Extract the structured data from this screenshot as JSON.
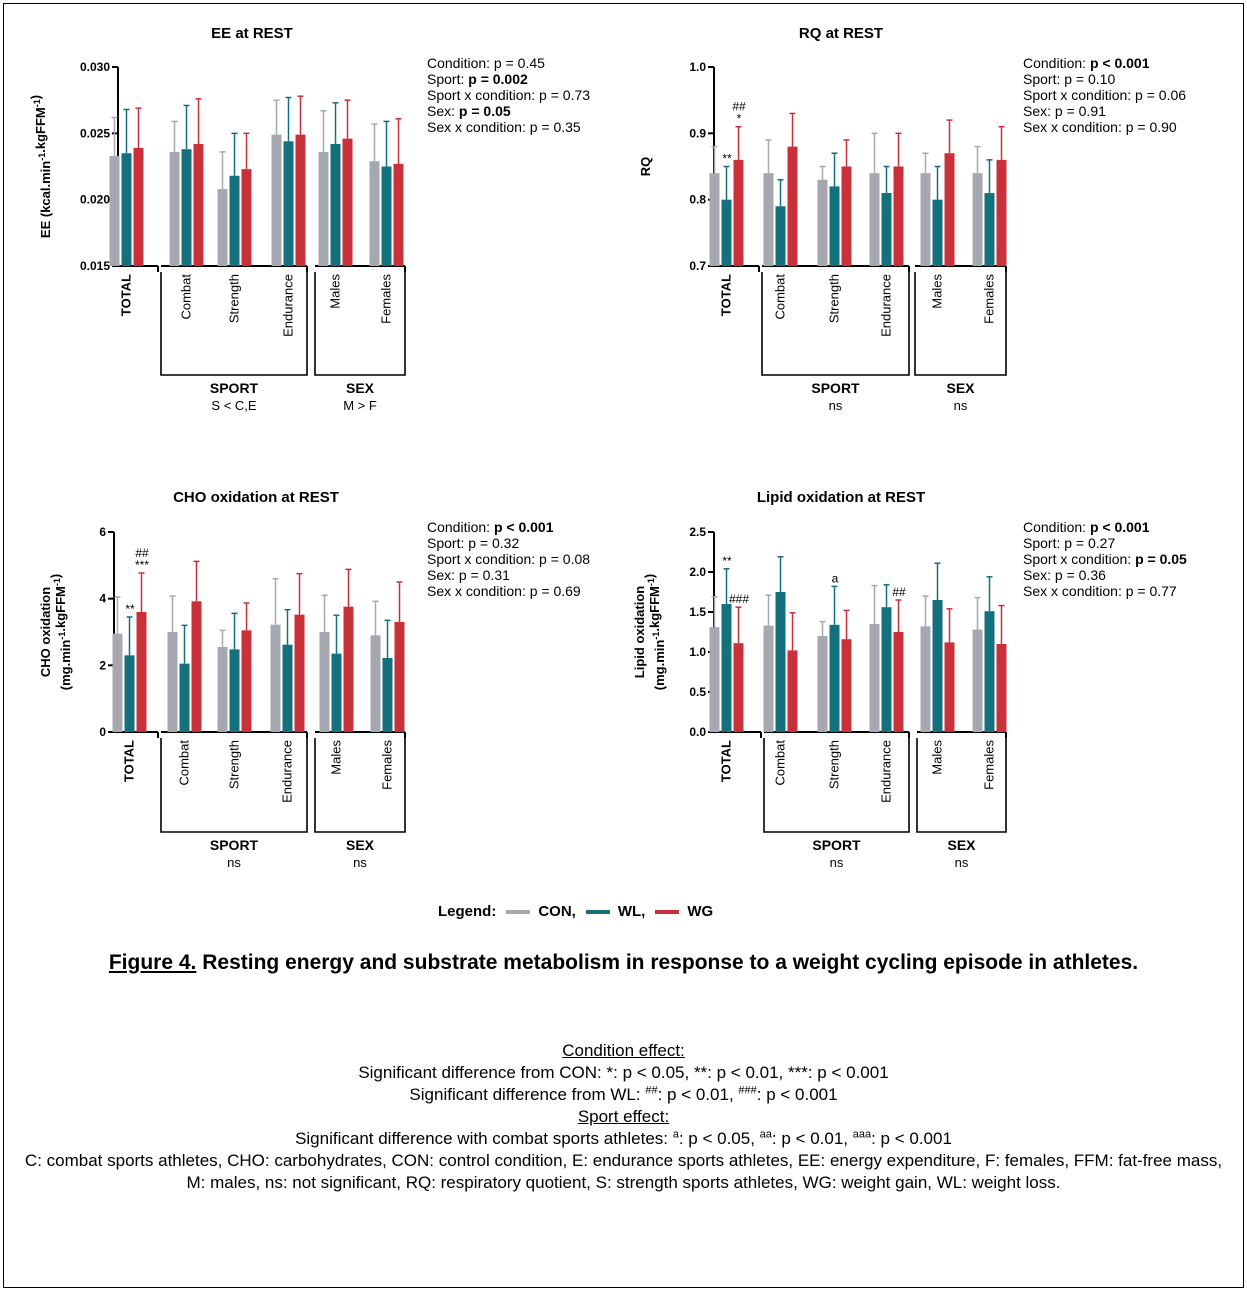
{
  "chart_data": [
    {
      "type": "bar",
      "title": "EE at REST",
      "ylabel": "EE (kcal.min-1.kgFFM-1)",
      "ylim": [
        0.015,
        0.03
      ],
      "yticks": [
        "0.015",
        "0.020",
        "0.025",
        "0.030"
      ],
      "categories": [
        "TOTAL",
        "Combat",
        "Strength",
        "Endurance",
        "Males",
        "Females"
      ],
      "series": [
        {
          "name": "CON",
          "values": [
            0.0233,
            0.0236,
            0.0208,
            0.0249,
            0.0236,
            0.0229
          ],
          "err": [
            0.0029,
            0.0023,
            0.0028,
            0.0026,
            0.0031,
            0.0028
          ]
        },
        {
          "name": "WL",
          "values": [
            0.0235,
            0.0238,
            0.0218,
            0.0244,
            0.0242,
            0.0225
          ],
          "err": [
            0.0033,
            0.0033,
            0.0032,
            0.0033,
            0.0031,
            0.0034
          ]
        },
        {
          "name": "WG",
          "values": [
            0.0239,
            0.0242,
            0.0223,
            0.0249,
            0.0246,
            0.0227
          ],
          "err": [
            0.003,
            0.0034,
            0.0027,
            0.0029,
            0.0029,
            0.0034
          ]
        }
      ],
      "annotations": [],
      "groups": [
        {
          "label": "SPORT",
          "note": "S < C,E"
        },
        {
          "label": "SEX",
          "note": "M > F"
        }
      ],
      "stats": [
        {
          "text": "Condition: p = 0.45",
          "bold": ""
        },
        {
          "text": "Sport: ",
          "bold": "p = 0.002"
        },
        {
          "text": "Sport x condition: p = 0.73",
          "bold": ""
        },
        {
          "text": "Sex: ",
          "bold": "p = 0.05"
        },
        {
          "text": "Sex x condition: p = 0.35",
          "bold": ""
        }
      ]
    },
    {
      "type": "bar",
      "title": "RQ at REST",
      "ylabel": "RQ",
      "ylim": [
        0.7,
        1.0
      ],
      "yticks": [
        "0.7",
        "0.8",
        "0.9",
        "1.0"
      ],
      "categories": [
        "TOTAL",
        "Combat",
        "Strength",
        "Endurance",
        "Males",
        "Females"
      ],
      "series": [
        {
          "name": "CON",
          "values": [
            0.84,
            0.84,
            0.83,
            0.84,
            0.84,
            0.84
          ],
          "err": [
            0.04,
            0.05,
            0.02,
            0.06,
            0.03,
            0.04
          ]
        },
        {
          "name": "WL",
          "values": [
            0.8,
            0.79,
            0.82,
            0.81,
            0.8,
            0.81
          ],
          "err": [
            0.05,
            0.04,
            0.05,
            0.04,
            0.05,
            0.05
          ]
        },
        {
          "name": "WG",
          "values": [
            0.86,
            0.88,
            0.85,
            0.85,
            0.87,
            0.86
          ],
          "err": [
            0.05,
            0.05,
            0.04,
            0.05,
            0.05,
            0.05
          ]
        }
      ],
      "annotations": [
        {
          "cat": 0,
          "bar": 1,
          "lines": [
            "**"
          ]
        },
        {
          "cat": 0,
          "bar": 2,
          "lines": [
            "##",
            "*"
          ]
        }
      ],
      "groups": [
        {
          "label": "SPORT",
          "note": "ns"
        },
        {
          "label": "SEX",
          "note": "ns"
        }
      ],
      "stats": [
        {
          "text": "Condition: ",
          "bold": "p < 0.001"
        },
        {
          "text": "Sport: p = 0.10",
          "bold": ""
        },
        {
          "text": "Sport x condition: p = 0.06",
          "bold": ""
        },
        {
          "text": "Sex: p = 0.91",
          "bold": ""
        },
        {
          "text": "Sex x condition: p = 0.90",
          "bold": ""
        }
      ]
    },
    {
      "type": "bar",
      "title": "CHO oxidation at REST",
      "ylabel": "CHO oxidation",
      "ylabel2": "(mg.min-1.kgFFM-1)",
      "ylim": [
        0,
        6
      ],
      "yticks": [
        "0",
        "2",
        "4",
        "6"
      ],
      "categories": [
        "TOTAL",
        "Combat",
        "Strength",
        "Endurance",
        "Males",
        "Females"
      ],
      "series": [
        {
          "name": "CON",
          "values": [
            2.95,
            3.0,
            2.55,
            3.22,
            3.0,
            2.9
          ],
          "err": [
            1.1,
            1.08,
            0.5,
            1.38,
            1.1,
            1.02
          ]
        },
        {
          "name": "WL",
          "values": [
            2.3,
            2.05,
            2.48,
            2.62,
            2.35,
            2.22
          ],
          "err": [
            1.15,
            1.15,
            1.08,
            1.05,
            1.15,
            1.13
          ]
        },
        {
          "name": "WG",
          "values": [
            3.6,
            3.92,
            3.05,
            3.52,
            3.76,
            3.3
          ],
          "err": [
            1.17,
            1.2,
            0.82,
            1.23,
            1.12,
            1.2
          ]
        }
      ],
      "annotations": [
        {
          "cat": 0,
          "bar": 1,
          "lines": [
            "**"
          ]
        },
        {
          "cat": 0,
          "bar": 2,
          "lines": [
            "##",
            "***"
          ]
        }
      ],
      "groups": [
        {
          "label": "SPORT",
          "note": "ns"
        },
        {
          "label": "SEX",
          "note": "ns"
        }
      ],
      "stats": [
        {
          "text": "Condition: ",
          "bold": "p < 0.001"
        },
        {
          "text": "Sport: p = 0.32",
          "bold": ""
        },
        {
          "text": "Sport x condition: p = 0.08",
          "bold": ""
        },
        {
          "text": "Sex: p = 0.31",
          "bold": ""
        },
        {
          "text": "Sex x condition: p = 0.69",
          "bold": ""
        }
      ]
    },
    {
      "type": "bar",
      "title": "Lipid oxidation at REST",
      "ylabel": "Lipid oxidation",
      "ylabel2": "(mg.min-1.kgFFM-1)",
      "ylim": [
        0,
        2.5
      ],
      "yticks": [
        "0.0",
        "0.5",
        "1.0",
        "1.5",
        "2.0",
        "2.5"
      ],
      "categories": [
        "TOTAL",
        "Combat",
        "Strength",
        "Endurance",
        "Males",
        "Females"
      ],
      "series": [
        {
          "name": "CON",
          "values": [
            1.31,
            1.33,
            1.2,
            1.35,
            1.32,
            1.28
          ],
          "err": [
            0.38,
            0.38,
            0.18,
            0.48,
            0.38,
            0.4
          ]
        },
        {
          "name": "WL",
          "values": [
            1.6,
            1.75,
            1.34,
            1.56,
            1.65,
            1.51
          ],
          "err": [
            0.44,
            0.44,
            0.48,
            0.28,
            0.46,
            0.43
          ]
        },
        {
          "name": "WG",
          "values": [
            1.11,
            1.02,
            1.16,
            1.25,
            1.12,
            1.1
          ],
          "err": [
            0.45,
            0.47,
            0.36,
            0.4,
            0.42,
            0.48
          ]
        }
      ],
      "annotations": [
        {
          "cat": 0,
          "bar": 1,
          "lines": [
            "**"
          ]
        },
        {
          "cat": 0,
          "bar": 2,
          "lines": [
            "###"
          ]
        },
        {
          "cat": 2,
          "bar": 1,
          "lines": [
            "a"
          ]
        },
        {
          "cat": 3,
          "bar": 2,
          "lines": [
            "##"
          ]
        }
      ],
      "groups": [
        {
          "label": "SPORT",
          "note": "ns"
        },
        {
          "label": "SEX",
          "note": "ns"
        }
      ],
      "stats": [
        {
          "text": "Condition: ",
          "bold": "p < 0.001"
        },
        {
          "text": "Sport: p = 0.27",
          "bold": ""
        },
        {
          "text": "Sport x condition: ",
          "bold": "p = 0.05"
        },
        {
          "text": "Sex: p = 0.36",
          "bold": ""
        },
        {
          "text": "Sex x condition: p = 0.77",
          "bold": ""
        }
      ]
    }
  ],
  "colors": {
    "CON": "#a5a8b0",
    "WL": "#14707c",
    "WG": "#c8303a"
  },
  "legend": {
    "label": "Legend:",
    "items": [
      "CON,",
      "WL,",
      "WG"
    ]
  },
  "caption": {
    "figure": "Figure 4.",
    "text": " Resting energy and substrate metabolism in response to a weight cycling episode in athletes."
  },
  "notes": {
    "condition_heading": "Condition effect:",
    "con_prefix": "Significant difference from CON: ",
    "con_items": [
      [
        "*",
        ": p < 0.05, "
      ],
      [
        "**",
        ": p < 0.01, "
      ],
      [
        "***",
        ": p < 0.001"
      ]
    ],
    "wl_prefix": "Significant difference from WL: ",
    "wl_items": [
      [
        "##",
        ": p < 0.01, "
      ],
      [
        "###",
        ": p < 0.001"
      ]
    ],
    "sport_heading": "Sport effect:",
    "sport_prefix": "Significant difference with combat sports athletes: ",
    "sport_items": [
      [
        "a",
        ": p < 0.05, "
      ],
      [
        "aa",
        ": p < 0.01, "
      ],
      [
        "aaa",
        ": p < 0.001"
      ]
    ],
    "abbreviations": "C: combat sports athletes, CHO: carbohydrates, CON: control condition, E: endurance sports athletes, EE: energy expenditure, F: females, FFM: fat-free mass, M: males, ns: not significant, RQ: respiratory quotient, S: strength sports athletes, WG: weight gain, WL: weight loss."
  }
}
